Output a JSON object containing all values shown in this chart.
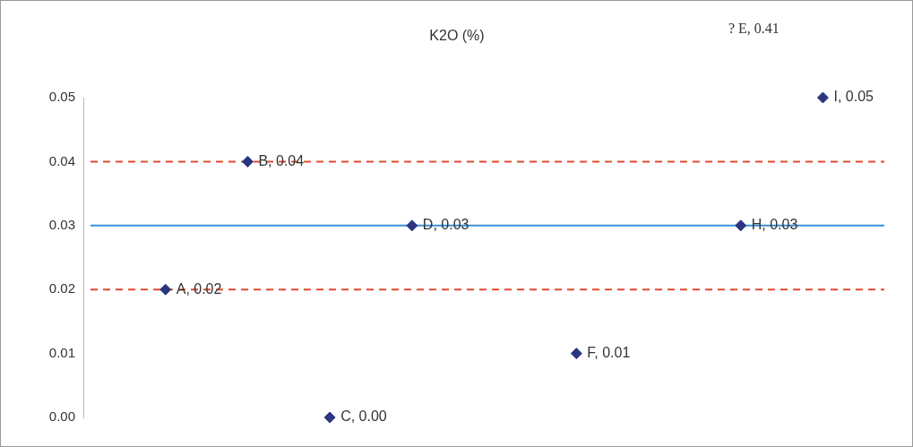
{
  "chart_data": {
    "type": "scatter",
    "title": "K2O (%)",
    "categories": [
      null,
      null,
      null,
      null,
      null,
      null,
      null,
      null,
      null
    ],
    "values": [
      0.02,
      0.04,
      0.0,
      0.03,
      null,
      0.01,
      null,
      0.03,
      0.05
    ],
    "value_labels": [
      "A, 0.02",
      "B, 0.04",
      "C, 0.00",
      "D, 0.03",
      null,
      "F, 0.01",
      null,
      "H, 0.03",
      "I, 0.05"
    ],
    "color": "#2b3580",
    "marker": "diamond",
    "ylim": [
      0,
      0.05
    ],
    "yticks": [
      {
        "value": 0,
        "label": "0.00"
      },
      {
        "value": 0.01,
        "label": "0.01"
      },
      {
        "value": 0.02,
        "label": "0.02"
      },
      {
        "value": 0.03,
        "label": "0.03"
      },
      {
        "value": 0.04,
        "label": "0.04"
      },
      {
        "value": 0.05,
        "label": "0.05"
      }
    ],
    "ref_lines": [
      {
        "axis": "y",
        "value": 0.04,
        "color": "#e04a30",
        "line_style": "dashed"
      },
      {
        "axis": "y",
        "value": 0.03,
        "color": "#3a8fd8",
        "line_style": "solid"
      },
      {
        "axis": "y",
        "value": 0.02,
        "color": "#e04a30",
        "line_style": "dashed"
      }
    ],
    "annotations": [
      "? E, 0.41"
    ],
    "grid": false,
    "legend": false
  }
}
